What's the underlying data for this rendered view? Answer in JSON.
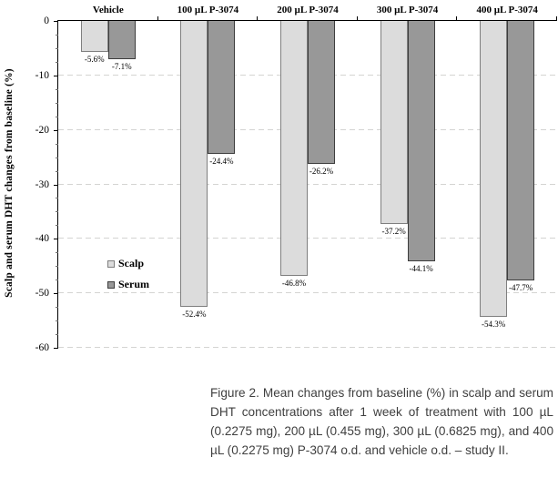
{
  "chart_data": {
    "type": "bar",
    "title": "",
    "xlabel": "",
    "ylabel": "Scalp and serum DHT changes from baseline (%)",
    "ylim": [
      0,
      -60
    ],
    "yticks": [
      0,
      -10,
      -20,
      -30,
      -40,
      -50,
      -60
    ],
    "minor_tick_step": 2.5,
    "grid": "dashed-horizontal-major",
    "legend_position": "inside-left",
    "categories": [
      "Vehicle",
      "100 µL P-3074",
      "200 µL P-3074",
      "300 µL P-3074",
      "400 µL P-3074"
    ],
    "series": [
      {
        "name": "Scalp",
        "fill_color": "#dcdcdc",
        "border_color": "#7f7f7f",
        "values": [
          -5.6,
          -52.4,
          -46.8,
          -37.2,
          -54.3
        ],
        "labels": [
          "-5.6%",
          "-52.4%",
          "-46.8%",
          "-37.2%",
          "-54.3%"
        ]
      },
      {
        "name": "Serum",
        "fill_color": "#989898",
        "border_color": "#3d3d3d",
        "values": [
          -7.1,
          -24.4,
          -26.2,
          -44.1,
          -47.7
        ],
        "labels": [
          "-7.1%",
          "-24.4%",
          "-26.2%",
          "-44.1%",
          "-47.7%"
        ]
      }
    ]
  },
  "caption": {
    "text": "Figure 2. Mean changes from baseline (%) in scalp and serum DHT concentrations after 1 week of treatment with 100 µL (0.2275 mg), 200 µL (0.455 mg), 300 µL (0.6825 mg), and 400 µL (0.2275 mg) P-3074 o.d. and vehicle o.d. – study II."
  },
  "colors": {
    "axis": "#000000",
    "gridline": "#d4d4d2",
    "background": "#ffffff",
    "caption_text": "#3f3f3f"
  }
}
